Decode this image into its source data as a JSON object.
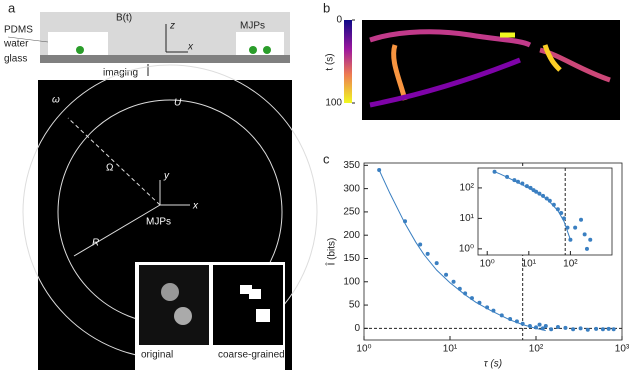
{
  "figure": {
    "panel_labels": [
      "a",
      "b",
      "c"
    ]
  },
  "schematic": {
    "pdms": "PDMS",
    "water": "water",
    "glass": "glass",
    "field": "B(t)",
    "z": "z",
    "x": "x",
    "mjps": "MJPs",
    "imaging": "imaging"
  },
  "micrograph": {
    "omega": "ω",
    "u": "U",
    "big_omega": "Ω",
    "y": "y",
    "x": "x",
    "mjps": "MJPs",
    "r": "R",
    "original": "original",
    "coarse": "coarse-grained"
  },
  "trajectories": {
    "colorbar_label": "t (s)",
    "colorbar_lim": [
      0,
      100
    ],
    "colorbar_ticks": [
      0,
      100
    ]
  },
  "chart_data": [
    {
      "type": "scatter",
      "xlabel": "τ (s)",
      "ylabel": "Î (bits)",
      "log_x": true,
      "log_y": false,
      "xlim": [
        1,
        1000
      ],
      "ylim": [
        -25,
        355
      ],
      "xticks": [
        {
          "value": 1,
          "label": "10⁰"
        },
        {
          "value": 10,
          "label": "10¹"
        },
        {
          "value": 100,
          "label": "10²"
        },
        {
          "value": 1000,
          "label": "10³"
        }
      ],
      "yticks": [
        0,
        50,
        100,
        150,
        200,
        250,
        300,
        350
      ],
      "vline": 70,
      "hline": 0,
      "series": [
        {
          "style": "points",
          "color": "#3a7fc1",
          "x": [
            1.5,
            3,
            4.5,
            5.5,
            7,
            9,
            11,
            13,
            15,
            18,
            22,
            27,
            32,
            40,
            50,
            60,
            70,
            85,
            100,
            110,
            120,
            130,
            150,
            180,
            220,
            270,
            330,
            400,
            500,
            600,
            700,
            800
          ],
          "values": [
            340,
            230,
            180,
            160,
            140,
            115,
            100,
            85,
            75,
            65,
            55,
            45,
            38,
            28,
            20,
            15,
            10,
            5,
            2,
            8,
            0,
            5,
            -2,
            3,
            1,
            -2,
            0,
            -3,
            -1,
            -2,
            -1,
            -2
          ]
        },
        {
          "style": "line",
          "color": "#3a7fc1",
          "x": [
            1.5,
            2,
            3,
            4,
            5,
            7,
            10,
            15,
            20,
            30,
            50,
            70,
            100,
            130
          ],
          "values": [
            340,
            290,
            225,
            185,
            158,
            125,
            98,
            72,
            56,
            38,
            18,
            8,
            0,
            -5
          ]
        }
      ]
    },
    {
      "type": "scatter",
      "log_x": true,
      "log_y": true,
      "xlim": [
        0.6,
        1000
      ],
      "ylim": [
        0.63,
        450
      ],
      "xticks": [
        {
          "value": 1,
          "label": "10⁰"
        },
        {
          "value": 10,
          "label": "10¹"
        },
        {
          "value": 100,
          "label": "10²"
        }
      ],
      "yticks": [
        {
          "value": 1,
          "label": "10⁰"
        },
        {
          "value": 10,
          "label": "10¹"
        },
        {
          "value": 100,
          "label": "10²"
        }
      ],
      "vline": 75,
      "series": [
        {
          "style": "points",
          "color": "#3a7fc1",
          "x": [
            1.5,
            3,
            4.5,
            5.5,
            7,
            9,
            11,
            13,
            15,
            18,
            22,
            27,
            32,
            40,
            50,
            60,
            70,
            85,
            100,
            130,
            180,
            220,
            250,
            300
          ],
          "values": [
            340,
            230,
            180,
            160,
            140,
            115,
            100,
            85,
            75,
            65,
            55,
            45,
            38,
            28,
            20,
            15,
            10,
            5,
            2,
            5,
            9,
            3,
            1,
            2
          ]
        },
        {
          "style": "line",
          "color": "#3a7fc1",
          "x": [
            1.5,
            2,
            3,
            4,
            5,
            7,
            10,
            15,
            20,
            30,
            50,
            70,
            100
          ],
          "values": [
            340,
            290,
            225,
            185,
            158,
            125,
            98,
            72,
            56,
            38,
            18,
            8,
            2
          ]
        }
      ]
    }
  ]
}
